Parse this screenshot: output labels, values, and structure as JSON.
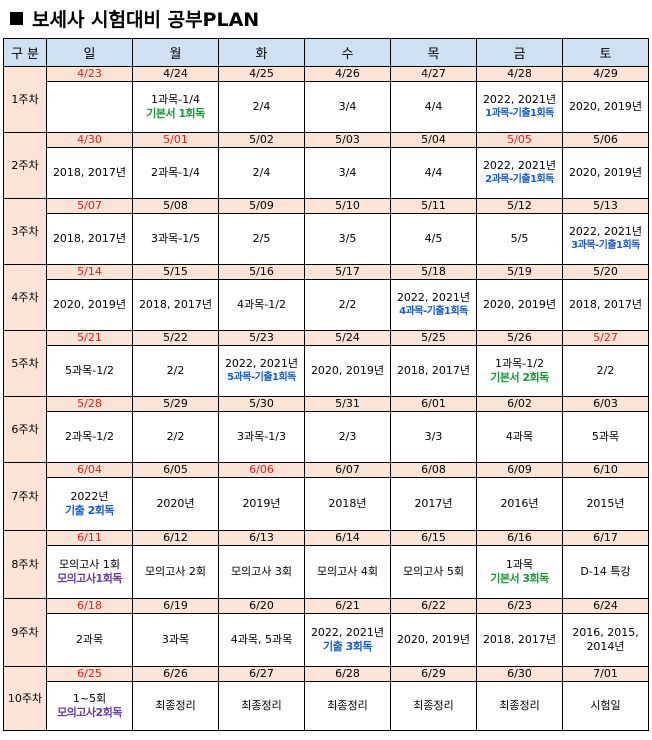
{
  "title": "보세사 시험대비 공부PLAN",
  "header": [
    "구 분",
    "일",
    "월",
    "화",
    "수",
    "목",
    "금",
    "토"
  ],
  "weeks": [
    {
      "label": "1주차",
      "h": 50,
      "dates": [
        {
          "t": "4/23",
          "red": true
        },
        {
          "t": "4/24"
        },
        {
          "t": "4/25"
        },
        {
          "t": "4/26"
        },
        {
          "t": "4/27"
        },
        {
          "t": "4/28"
        },
        {
          "t": "4/29"
        }
      ],
      "cells": [
        {
          "l1": ""
        },
        {
          "l1": "1과목-1/4",
          "l2": "기본서 1회독",
          "c": "green"
        },
        {
          "l1": "2/4"
        },
        {
          "l1": "3/4"
        },
        {
          "l1": "4/4"
        },
        {
          "l1": "2022, 2021년",
          "l2": "1과목-기출1회독",
          "c": "blue"
        },
        {
          "l1": "2020, 2019년"
        }
      ]
    },
    {
      "label": "2주차",
      "h": 50,
      "dates": [
        {
          "t": "4/30",
          "red": true
        },
        {
          "t": "5/01",
          "red": true
        },
        {
          "t": "5/02"
        },
        {
          "t": "5/03"
        },
        {
          "t": "5/04"
        },
        {
          "t": "5/05",
          "red": true
        },
        {
          "t": "5/06"
        }
      ],
      "cells": [
        {
          "l1": "2018, 2017년"
        },
        {
          "l1": "2과목-1/4"
        },
        {
          "l1": "2/4"
        },
        {
          "l1": "3/4"
        },
        {
          "l1": "4/4"
        },
        {
          "l1": "2022, 2021년",
          "l2": "2과목-기출1회독",
          "c": "blue"
        },
        {
          "l1": "2020, 2019년"
        }
      ]
    },
    {
      "label": "3주차",
      "h": 50,
      "dates": [
        {
          "t": "5/07",
          "red": true
        },
        {
          "t": "5/08"
        },
        {
          "t": "5/09"
        },
        {
          "t": "5/10"
        },
        {
          "t": "5/11"
        },
        {
          "t": "5/12"
        },
        {
          "t": "5/13"
        }
      ],
      "cells": [
        {
          "l1": "2018, 2017년"
        },
        {
          "l1": "3과목-1/5"
        },
        {
          "l1": "2/5"
        },
        {
          "l1": "3/5"
        },
        {
          "l1": "4/5"
        },
        {
          "l1": "5/5"
        },
        {
          "l1": "2022, 2021년",
          "l2": "3과목-기출1회독",
          "c": "blue"
        }
      ]
    },
    {
      "label": "4주차",
      "h": 50,
      "dates": [
        {
          "t": "5/14",
          "red": true
        },
        {
          "t": "5/15"
        },
        {
          "t": "5/16"
        },
        {
          "t": "5/17"
        },
        {
          "t": "5/18"
        },
        {
          "t": "5/19"
        },
        {
          "t": "5/20"
        }
      ],
      "cells": [
        {
          "l1": "2020, 2019년"
        },
        {
          "l1": "2018, 2017년"
        },
        {
          "l1": "4과목-1/2"
        },
        {
          "l1": "2/2"
        },
        {
          "l1": "2022, 2021년",
          "l2": "4과목-기출1회독",
          "c": "blue"
        },
        {
          "l1": "2020, 2019년"
        },
        {
          "l1": "2018, 2017년"
        }
      ]
    },
    {
      "label": "5주차",
      "h": 50,
      "dates": [
        {
          "t": "5/21",
          "red": true
        },
        {
          "t": "5/22"
        },
        {
          "t": "5/23"
        },
        {
          "t": "5/24"
        },
        {
          "t": "5/25"
        },
        {
          "t": "5/26"
        },
        {
          "t": "5/27",
          "red": true
        }
      ],
      "cells": [
        {
          "l1": "5과목-1/2"
        },
        {
          "l1": "2/2"
        },
        {
          "l1": "2022, 2021년",
          "l2": "5과목-기출1회독",
          "c": "blue"
        },
        {
          "l1": "2020, 2019년"
        },
        {
          "l1": "2018, 2017년"
        },
        {
          "l1": "1과목-1/2",
          "l2": "기본서 2회독",
          "c": "green"
        },
        {
          "l1": "2/2"
        }
      ]
    },
    {
      "label": "6주차",
      "h": 50,
      "dates": [
        {
          "t": "5/28",
          "red": true
        },
        {
          "t": "5/29"
        },
        {
          "t": "5/30"
        },
        {
          "t": "5/31"
        },
        {
          "t": "6/01"
        },
        {
          "t": "6/02"
        },
        {
          "t": "6/03"
        }
      ],
      "cells": [
        {
          "l1": "2과목-1/2"
        },
        {
          "l1": "2/2"
        },
        {
          "l1": "3과목-1/3"
        },
        {
          "l1": "2/3"
        },
        {
          "l1": "3/3"
        },
        {
          "l1": "4과목"
        },
        {
          "l1": "5과목"
        }
      ]
    },
    {
      "label": "7주차",
      "h": 52,
      "dates": [
        {
          "t": "6/04",
          "red": true
        },
        {
          "t": "6/05"
        },
        {
          "t": "6/06",
          "red": true
        },
        {
          "t": "6/07"
        },
        {
          "t": "6/08"
        },
        {
          "t": "6/09"
        },
        {
          "t": "6/10"
        }
      ],
      "cells": [
        {
          "l1": "2022년",
          "l2": "기출 2회독",
          "c": "blue2"
        },
        {
          "l1": "2020년"
        },
        {
          "l1": "2019년"
        },
        {
          "l1": "2018년"
        },
        {
          "l1": "2017년"
        },
        {
          "l1": "2016년"
        },
        {
          "l1": "2015년"
        }
      ]
    },
    {
      "label": "8주차",
      "h": 52,
      "dates": [
        {
          "t": "6/11",
          "red": true
        },
        {
          "t": "6/12"
        },
        {
          "t": "6/13"
        },
        {
          "t": "6/14"
        },
        {
          "t": "6/15"
        },
        {
          "t": "6/16"
        },
        {
          "t": "6/17"
        }
      ],
      "cells": [
        {
          "l1": "모의고사 1회",
          "l2": "모의고사1회독",
          "c": "purple"
        },
        {
          "l1": "모의고사 2회"
        },
        {
          "l1": "모의고사 3회"
        },
        {
          "l1": "모의고사 4회"
        },
        {
          "l1": "모의고사 5회"
        },
        {
          "l1": "1과목",
          "l2": "기본서 3회독",
          "c": "green"
        },
        {
          "l1": "D-14 특강"
        }
      ]
    },
    {
      "label": "9주차",
      "h": 52,
      "dates": [
        {
          "t": "6/18",
          "red": true
        },
        {
          "t": "6/19"
        },
        {
          "t": "6/20"
        },
        {
          "t": "6/21"
        },
        {
          "t": "6/22"
        },
        {
          "t": "6/23"
        },
        {
          "t": "6/24"
        }
      ],
      "cells": [
        {
          "l1": "2과목"
        },
        {
          "l1": "3과목"
        },
        {
          "l1": "4과목, 5과목"
        },
        {
          "l1": "2022, 2021년",
          "l2": "기출 3회독",
          "c": "blue2"
        },
        {
          "l1": "2020, 2019년"
        },
        {
          "l1": "2018, 2017년"
        },
        {
          "l1": "2016, 2015,",
          "l2": "2014년",
          "c": "plain"
        }
      ]
    },
    {
      "label": "10주차",
      "h": 48,
      "dates": [
        {
          "t": "6/25",
          "red": true
        },
        {
          "t": "6/26"
        },
        {
          "t": "6/27"
        },
        {
          "t": "6/28"
        },
        {
          "t": "6/29"
        },
        {
          "t": "6/30"
        },
        {
          "t": "7/01"
        }
      ],
      "cells": [
        {
          "l1": "1~5회",
          "l2": "모의고사2회독",
          "c": "purple"
        },
        {
          "l1": "최종정리"
        },
        {
          "l1": "최종정리"
        },
        {
          "l1": "최종정리"
        },
        {
          "l1": "최종정리"
        },
        {
          "l1": "최종정리"
        },
        {
          "l1": "시험일"
        }
      ]
    }
  ]
}
